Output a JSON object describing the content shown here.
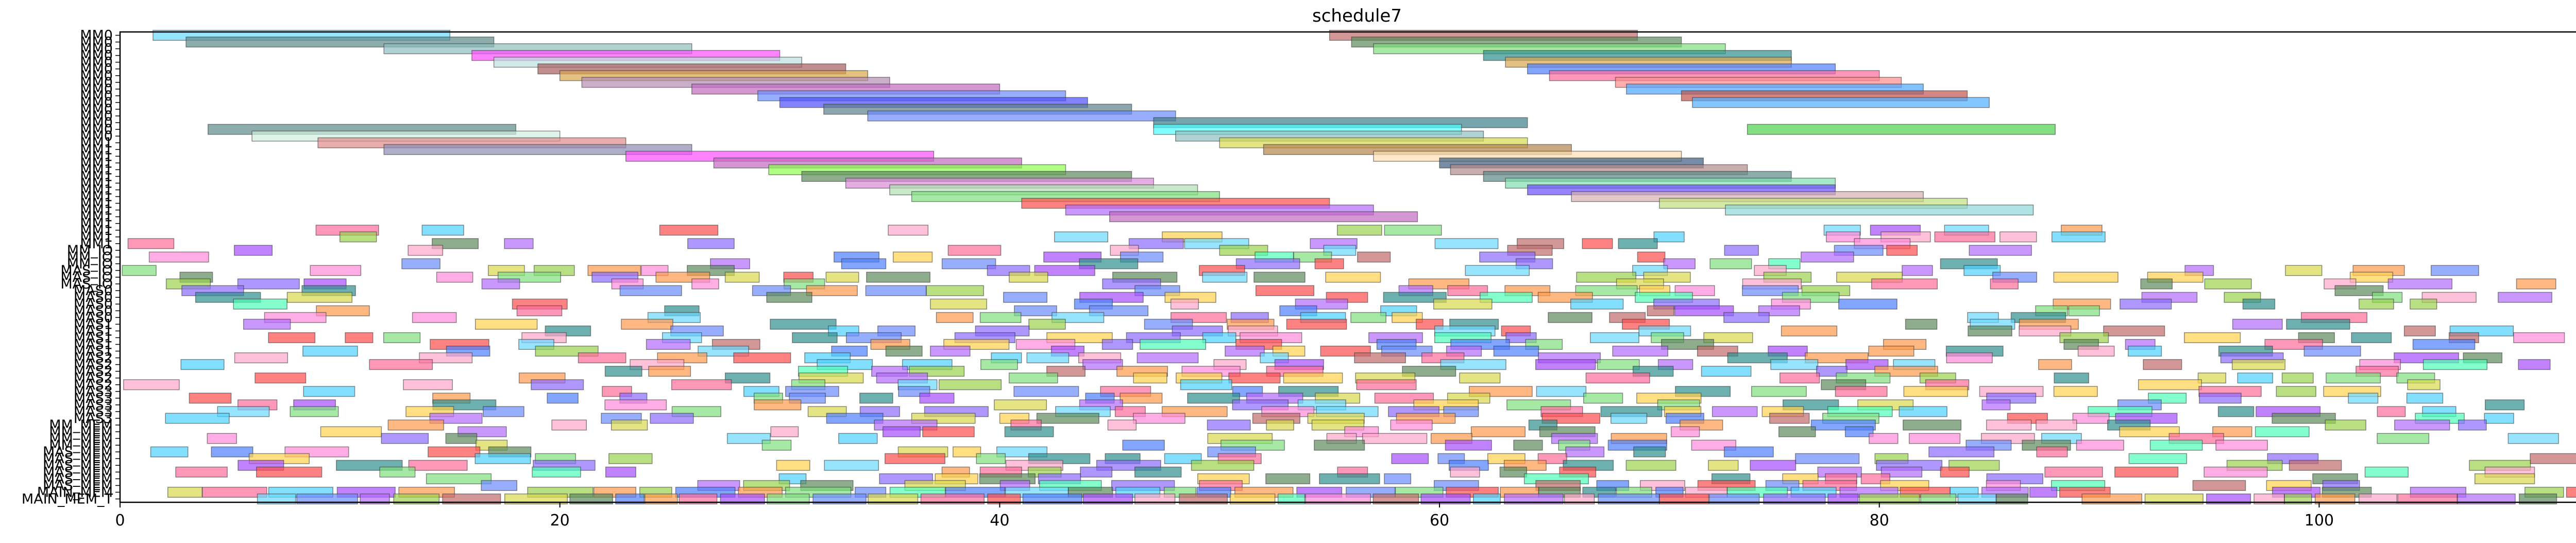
{
  "chart_data": {
    "type": "gantt",
    "title": "schedule7",
    "xlabel": "",
    "ylabel": "",
    "xlim": [
      0,
      112.5
    ],
    "xticks": [
      0,
      20,
      40,
      60,
      80,
      100
    ],
    "grid": false,
    "legend": "none",
    "rows": [
      "MM0",
      "MM0",
      "MM0",
      "MM0",
      "MM0",
      "MM0",
      "MM0",
      "MM0",
      "MM0",
      "MM0",
      "MM0",
      "MM0",
      "MM0",
      "MM0",
      "MM0",
      "MM0",
      "MM1",
      "MM1",
      "MM1",
      "MM1",
      "MM1",
      "MM1",
      "MM1",
      "MM1",
      "MM1",
      "MM1",
      "MM1",
      "MM1",
      "MM1",
      "MM1",
      "MM1",
      "MM1",
      "MM_IO",
      "MM_IO",
      "MM_IO",
      "MAS_IO",
      "MAS_IO",
      "MAS_IO",
      "MAS0",
      "MAS0",
      "MAS0",
      "MAS0",
      "MAS0",
      "MAS1",
      "MAS1",
      "MAS1",
      "MAS1",
      "MAS1",
      "MAS2",
      "MAS2",
      "MAS2",
      "MAS2",
      "MAS2",
      "MAS3",
      "MAS3",
      "MAS3",
      "MAS3",
      "MAS3",
      "MM_MEM",
      "MM_MEM",
      "MM_MEM",
      "MM_MEM",
      "MAS_MEM",
      "MAS_MEM",
      "MAS_MEM",
      "MAS_MEM",
      "MAS_MEM",
      "MAS_MEM",
      "MAIN_MEM",
      "MAIN_MEM_T"
    ],
    "palette": [
      "#ff4d4d",
      "#4dd2ff",
      "#7fe07f",
      "#ff8ad8",
      "#6b8cff",
      "#ffd24d",
      "#b46bff",
      "#4dffb8",
      "#ff9a4d",
      "#9ad24d",
      "#2f8f8f",
      "#c26b6b",
      "#8c6bff",
      "#ffa6c9",
      "#5c8a5c",
      "#d8d84d",
      "#6bd8ff",
      "#a64dff",
      "#4d7fff",
      "#ff6b9a"
    ],
    "tasks": [
      {
        "row": 0,
        "start": 1.5,
        "end": 15.0,
        "color": "#6bd8ff"
      },
      {
        "row": 0,
        "start": 55.0,
        "end": 69.0,
        "color": "#c26b6b"
      },
      {
        "row": 1,
        "start": 3.0,
        "end": 17.0,
        "color": "#5c8a8a"
      },
      {
        "row": 1,
        "start": 56.0,
        "end": 71.0,
        "color": "#5c8a5c"
      },
      {
        "row": 2,
        "start": 12.0,
        "end": 26.0,
        "color": "#8fbfbf"
      },
      {
        "row": 2,
        "start": 57.0,
        "end": 73.0,
        "color": "#7fe07f"
      },
      {
        "row": 3,
        "start": 16.0,
        "end": 30.0,
        "color": "#ff4dff"
      },
      {
        "row": 3,
        "start": 62.0,
        "end": 76.0,
        "color": "#2f8f8f"
      },
      {
        "row": 4,
        "start": 17.0,
        "end": 31.0,
        "color": "#bfe0e0"
      },
      {
        "row": 4,
        "start": 63.0,
        "end": 76.0,
        "color": "#d8a64d"
      },
      {
        "row": 5,
        "start": 19.0,
        "end": 33.0,
        "color": "#a65c5c"
      },
      {
        "row": 5,
        "start": 64.0,
        "end": 78.0,
        "color": "#4d7fff"
      },
      {
        "row": 6,
        "start": 20.0,
        "end": 34.0,
        "color": "#d8a64d"
      },
      {
        "row": 6,
        "start": 65.0,
        "end": 80.0,
        "color": "#ff6b9a"
      },
      {
        "row": 7,
        "start": 21.0,
        "end": 35.0,
        "color": "#b48cb4"
      },
      {
        "row": 7,
        "start": 68.0,
        "end": 81.0,
        "color": "#ff8a8a"
      },
      {
        "row": 8,
        "start": 26.0,
        "end": 40.0,
        "color": "#c26bc2"
      },
      {
        "row": 8,
        "start": 68.5,
        "end": 82.0,
        "color": "#4da6ff"
      },
      {
        "row": 9,
        "start": 29.0,
        "end": 43.0,
        "color": "#6b8cff"
      },
      {
        "row": 9,
        "start": 71.0,
        "end": 84.0,
        "color": "#c2524d"
      },
      {
        "row": 10,
        "start": 30.0,
        "end": 44.0,
        "color": "#4d4dff"
      },
      {
        "row": 10,
        "start": 71.5,
        "end": 85.0,
        "color": "#4dafff"
      },
      {
        "row": 11,
        "start": 32.0,
        "end": 46.0,
        "color": "#5c7f8a"
      },
      {
        "row": 12,
        "start": 34.0,
        "end": 48.0,
        "color": "#6b8cff"
      },
      {
        "row": 13,
        "start": 47.0,
        "end": 64.0,
        "color": "#3c7f8a"
      },
      {
        "row": 14,
        "start": 4.0,
        "end": 18.0,
        "color": "#5c8a8a"
      },
      {
        "row": 14,
        "start": 47.0,
        "end": 61.0,
        "color": "#4dffff"
      },
      {
        "row": 14,
        "start": 74.0,
        "end": 88.0,
        "color": "#4dd24d"
      },
      {
        "row": 15,
        "start": 6.0,
        "end": 20.0,
        "color": "#d0f0e0"
      },
      {
        "row": 15,
        "start": 48.0,
        "end": 62.0,
        "color": "#8fbfbf"
      },
      {
        "row": 16,
        "start": 9.0,
        "end": 23.0,
        "color": "#e08a8a"
      },
      {
        "row": 16,
        "start": 50.0,
        "end": 64.0,
        "color": "#d8d84d"
      },
      {
        "row": 17,
        "start": 12.0,
        "end": 26.0,
        "color": "#8c8cb4"
      },
      {
        "row": 17,
        "start": 52.0,
        "end": 66.0,
        "color": "#b4844d"
      },
      {
        "row": 18,
        "start": 23.0,
        "end": 37.0,
        "color": "#ff4dff"
      },
      {
        "row": 18,
        "start": 57.0,
        "end": 71.0,
        "color": "#ffe0b0"
      },
      {
        "row": 19,
        "start": 27.0,
        "end": 41.0,
        "color": "#c26bc2"
      },
      {
        "row": 19,
        "start": 60.0,
        "end": 72.0,
        "color": "#3c5c7f"
      },
      {
        "row": 20,
        "start": 29.5,
        "end": 43.0,
        "color": "#8cff4d"
      },
      {
        "row": 20,
        "start": 60.5,
        "end": 74.0,
        "color": "#b48c8c"
      },
      {
        "row": 21,
        "start": 31.0,
        "end": 46.0,
        "color": "#5c8a5c"
      },
      {
        "row": 21,
        "start": 62.0,
        "end": 76.0,
        "color": "#5c8a8a"
      },
      {
        "row": 22,
        "start": 33.0,
        "end": 47.0,
        "color": "#d88ad8"
      },
      {
        "row": 22,
        "start": 63.0,
        "end": 78.0,
        "color": "#7fe0b0"
      },
      {
        "row": 23,
        "start": 35.0,
        "end": 49.0,
        "color": "#b0e0b0"
      },
      {
        "row": 23,
        "start": 64.0,
        "end": 78.0,
        "color": "#6b4dff"
      },
      {
        "row": 24,
        "start": 36.0,
        "end": 50.0,
        "color": "#7fe07f"
      },
      {
        "row": 24,
        "start": 66.0,
        "end": 82.0,
        "color": "#d8b0b0"
      },
      {
        "row": 25,
        "start": 41.0,
        "end": 55.0,
        "color": "#ff4d4d"
      },
      {
        "row": 25,
        "start": 70.0,
        "end": 84.0,
        "color": "#c2e07f"
      },
      {
        "row": 26,
        "start": 43.0,
        "end": 57.0,
        "color": "#b46bff"
      },
      {
        "row": 26,
        "start": 73.0,
        "end": 87.0,
        "color": "#8fd8d8"
      },
      {
        "row": 27,
        "start": 45.0,
        "end": 59.0,
        "color": "#c26bc2"
      }
    ],
    "grid_tasks_region": {
      "rows_from": 29,
      "rows_to": 71,
      "x_from": 0,
      "x_to": 112.5,
      "approx_task_duration": 2.0
    }
  }
}
